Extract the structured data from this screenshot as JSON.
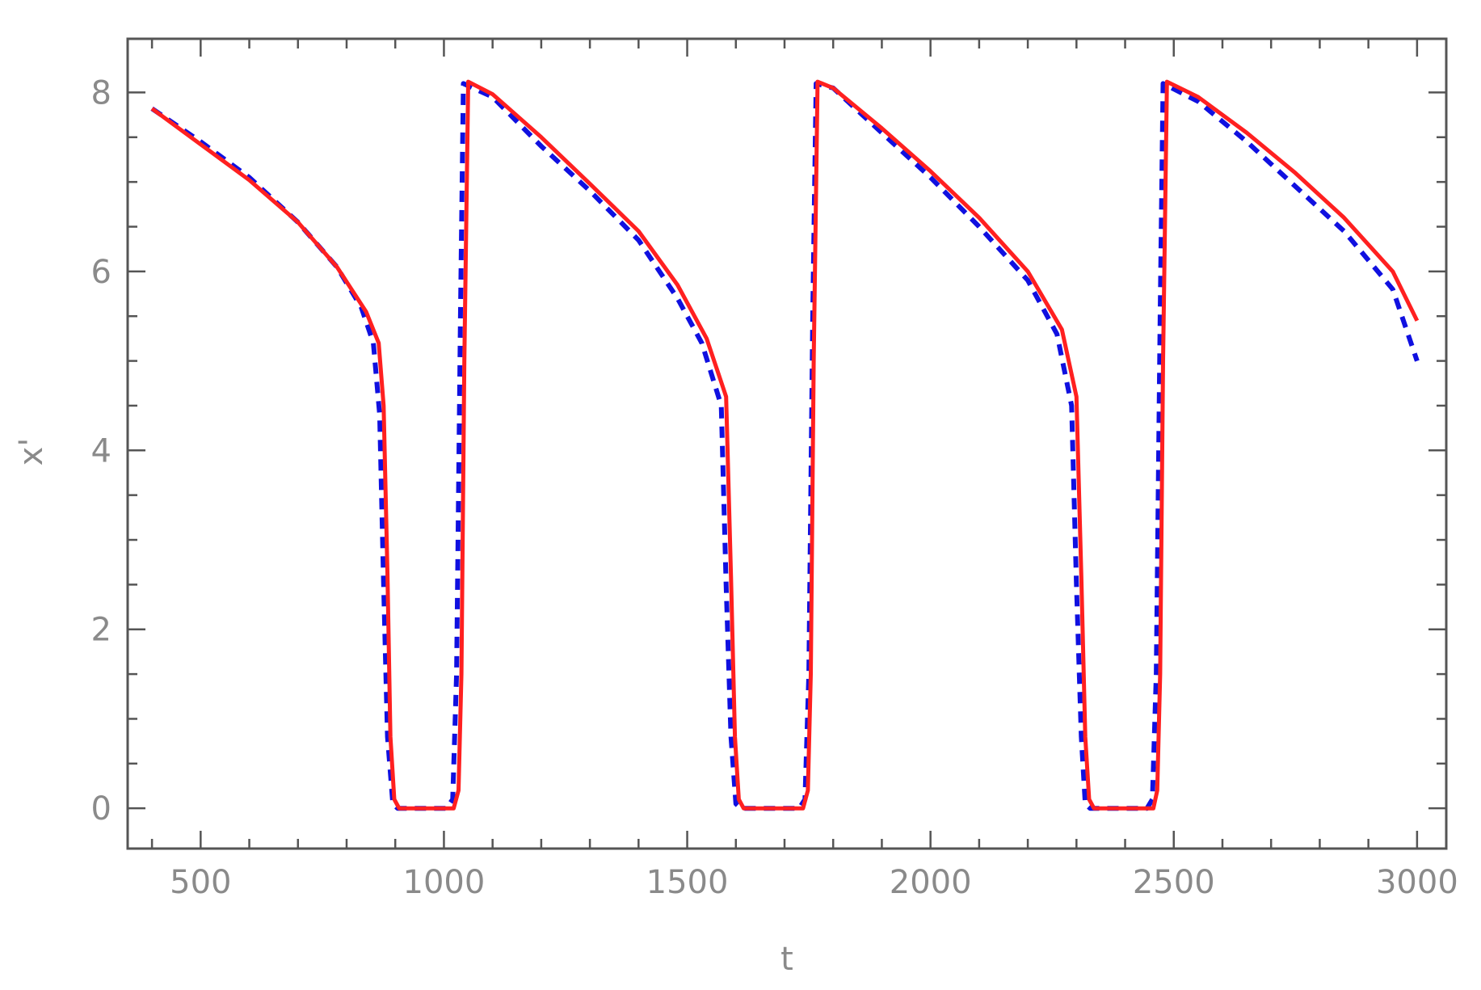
{
  "chart_data": {
    "type": "line",
    "title": "",
    "xlabel": "t",
    "ylabel": "x'",
    "xlim": [
      350,
      3060
    ],
    "ylim": [
      -0.45,
      8.6
    ],
    "x_ticks": [
      500,
      1000,
      1500,
      2000,
      2500,
      3000
    ],
    "x_tick_labels": [
      "500",
      "1000",
      "1500",
      "2000",
      "2500",
      "3000"
    ],
    "y_ticks": [
      0,
      2,
      4,
      6,
      8
    ],
    "y_tick_labels": [
      "0",
      "2",
      "4",
      "6",
      "8"
    ],
    "grid": false,
    "frame": true,
    "series": [
      {
        "color": "#1010e0",
        "style": "dashed",
        "points": [
          [
            400,
            7.82
          ],
          [
            500,
            7.45
          ],
          [
            600,
            7.05
          ],
          [
            700,
            6.55
          ],
          [
            780,
            6.05
          ],
          [
            830,
            5.6
          ],
          [
            855,
            5.2
          ],
          [
            868,
            4.4
          ],
          [
            876,
            2.5
          ],
          [
            884,
            0.8
          ],
          [
            895,
            0.05
          ],
          [
            905,
            0
          ],
          [
            1005,
            0
          ],
          [
            1018,
            0.1
          ],
          [
            1026,
            1.5
          ],
          [
            1034,
            5.5
          ],
          [
            1040,
            8.1
          ],
          [
            1100,
            7.95
          ],
          [
            1200,
            7.4
          ],
          [
            1300,
            6.9
          ],
          [
            1400,
            6.35
          ],
          [
            1480,
            5.7
          ],
          [
            1530,
            5.2
          ],
          [
            1570,
            4.5
          ],
          [
            1580,
            2.5
          ],
          [
            1590,
            0.8
          ],
          [
            1600,
            0.05
          ],
          [
            1610,
            0
          ],
          [
            1730,
            0
          ],
          [
            1742,
            0.1
          ],
          [
            1750,
            1.5
          ],
          [
            1758,
            5.5
          ],
          [
            1765,
            8.1
          ],
          [
            1800,
            8.05
          ],
          [
            1900,
            7.55
          ],
          [
            2000,
            7.05
          ],
          [
            2100,
            6.5
          ],
          [
            2200,
            5.9
          ],
          [
            2260,
            5.3
          ],
          [
            2290,
            4.5
          ],
          [
            2300,
            2.5
          ],
          [
            2310,
            0.8
          ],
          [
            2318,
            0.05
          ],
          [
            2328,
            0
          ],
          [
            2445,
            0
          ],
          [
            2456,
            0.1
          ],
          [
            2464,
            1.5
          ],
          [
            2472,
            5.5
          ],
          [
            2478,
            8.1
          ],
          [
            2550,
            7.9
          ],
          [
            2650,
            7.45
          ],
          [
            2750,
            6.95
          ],
          [
            2850,
            6.45
          ],
          [
            2950,
            5.8
          ],
          [
            3000,
            5.0
          ]
        ]
      },
      {
        "color": "#ff2020",
        "style": "solid",
        "points": [
          [
            400,
            7.82
          ],
          [
            500,
            7.42
          ],
          [
            600,
            7.02
          ],
          [
            700,
            6.55
          ],
          [
            780,
            6.05
          ],
          [
            840,
            5.55
          ],
          [
            866,
            5.2
          ],
          [
            876,
            4.5
          ],
          [
            884,
            2.6
          ],
          [
            890,
            0.8
          ],
          [
            898,
            0.1
          ],
          [
            908,
            0
          ],
          [
            1020,
            0
          ],
          [
            1030,
            0.2
          ],
          [
            1036,
            1.5
          ],
          [
            1042,
            5.0
          ],
          [
            1050,
            8.12
          ],
          [
            1100,
            7.98
          ],
          [
            1200,
            7.5
          ],
          [
            1300,
            6.98
          ],
          [
            1400,
            6.45
          ],
          [
            1480,
            5.85
          ],
          [
            1540,
            5.25
          ],
          [
            1580,
            4.6
          ],
          [
            1590,
            2.6
          ],
          [
            1598,
            0.8
          ],
          [
            1606,
            0.1
          ],
          [
            1616,
            0
          ],
          [
            1738,
            0
          ],
          [
            1748,
            0.2
          ],
          [
            1754,
            1.5
          ],
          [
            1760,
            5.0
          ],
          [
            1768,
            8.12
          ],
          [
            1800,
            8.05
          ],
          [
            1900,
            7.6
          ],
          [
            2000,
            7.12
          ],
          [
            2100,
            6.6
          ],
          [
            2200,
            6.0
          ],
          [
            2270,
            5.35
          ],
          [
            2300,
            4.6
          ],
          [
            2310,
            2.6
          ],
          [
            2318,
            0.8
          ],
          [
            2326,
            0.1
          ],
          [
            2336,
            0
          ],
          [
            2458,
            0
          ],
          [
            2466,
            0.2
          ],
          [
            2472,
            1.5
          ],
          [
            2478,
            5.0
          ],
          [
            2486,
            8.12
          ],
          [
            2550,
            7.95
          ],
          [
            2650,
            7.55
          ],
          [
            2750,
            7.1
          ],
          [
            2850,
            6.6
          ],
          [
            2950,
            6.0
          ],
          [
            3000,
            5.45
          ]
        ]
      }
    ]
  }
}
